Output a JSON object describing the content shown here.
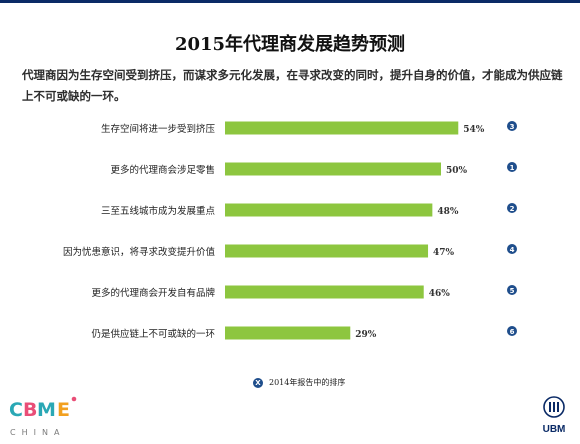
{
  "title": "2015年代理商发展趋势预测",
  "subtitle": "代理商因为生存空间受到挤压，而谋求多元化发展，在寻求改变的同时，提升自身的价值，才能成为供应链上不可或缺的一环。",
  "legend": {
    "badge": "X",
    "text": "2014年报告中的排序"
  },
  "logos": {
    "cbme_text": "CBME",
    "cbme_country": "CHINA",
    "ubm_text": "UBM"
  },
  "colors": {
    "bar": "#8dc63f",
    "badge": "#1f4e8c",
    "title": "#111111"
  },
  "chart_data": {
    "type": "bar",
    "orientation": "horizontal",
    "categories": [
      "生存空间将进一步受到挤压",
      "更多的代理商会涉足零售",
      "三至五线城市成为发展重点",
      "因为忧患意识，将寻求改变提升价值",
      "更多的代理商会开发自有品牌",
      "仍是供应链上不可或缺的一环"
    ],
    "values": [
      54,
      50,
      48,
      47,
      46,
      29
    ],
    "value_labels": [
      "54%",
      "50%",
      "48%",
      "47%",
      "46%",
      "29%"
    ],
    "rank_2014": [
      "3",
      "1",
      "2",
      "4",
      "5",
      "6"
    ],
    "xlim": [
      0,
      100
    ],
    "grid": false,
    "legend_position": "bottom"
  }
}
